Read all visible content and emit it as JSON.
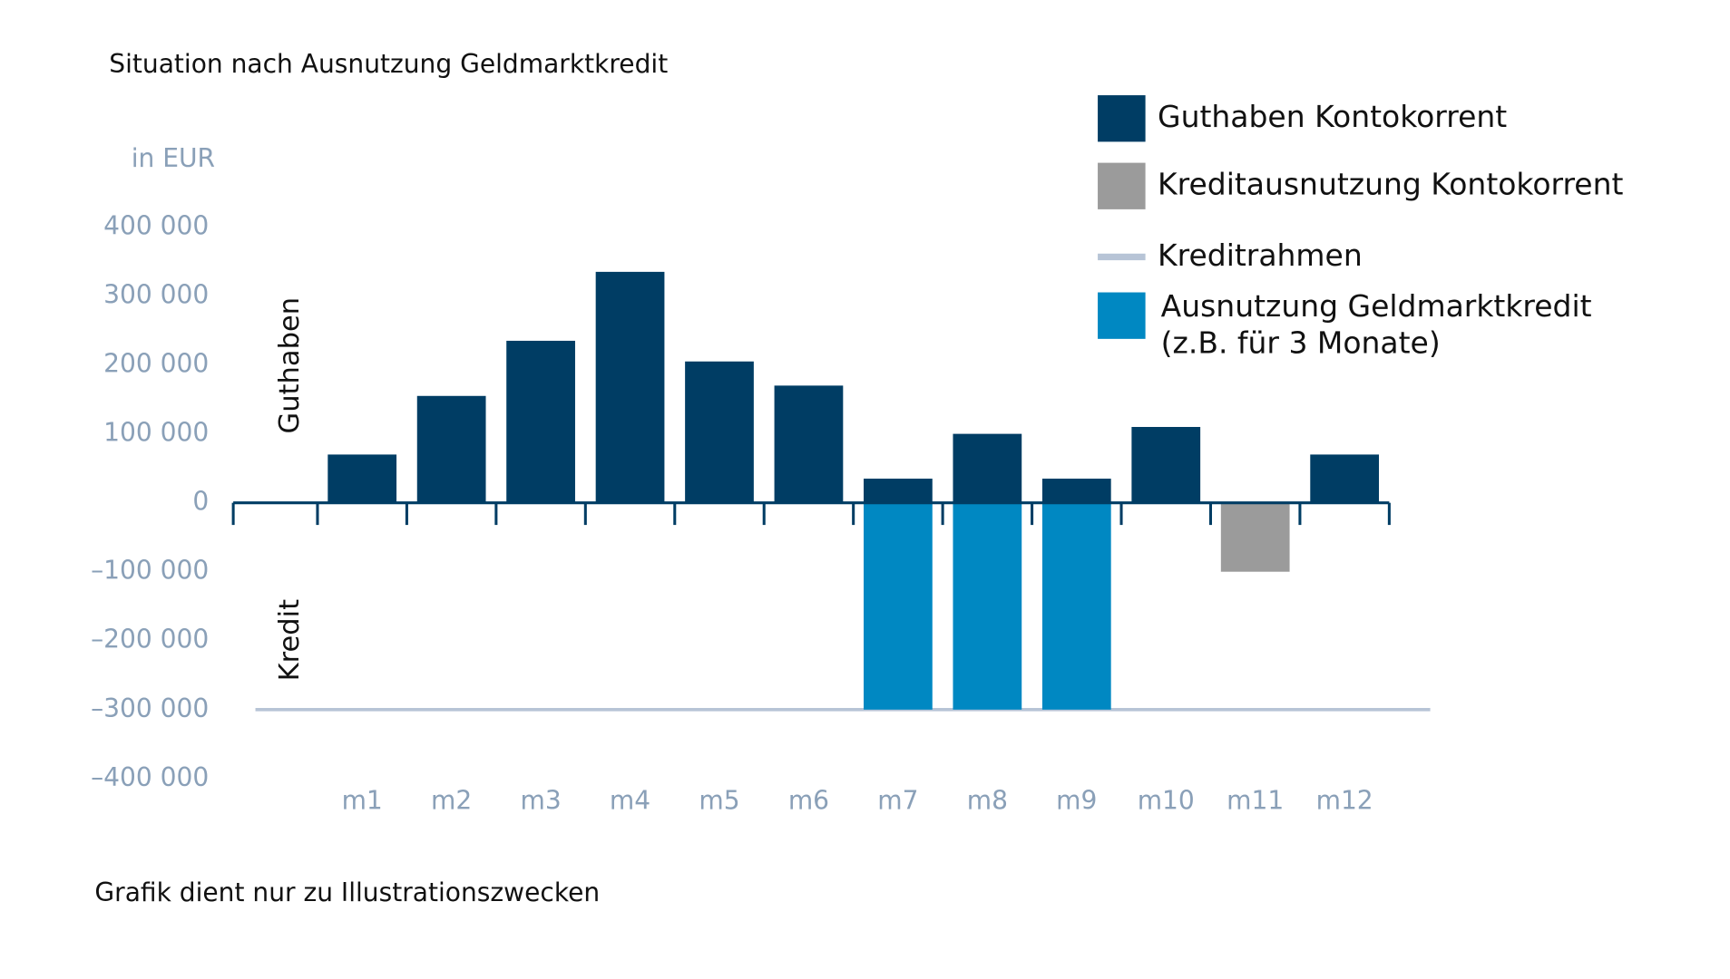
{
  "chart_data": {
    "type": "bar",
    "title": "Situation nach Ausnutzung Geldmarktkredit",
    "y_axis_label": "in EUR",
    "positive_label": "Guthaben",
    "negative_label": "Kredit",
    "footnote": "Grafik dient nur zu Illustrationszwecken",
    "categories": [
      "m1",
      "m2",
      "m3",
      "m4",
      "m5",
      "m6",
      "m7",
      "m8",
      "m9",
      "m10",
      "m11",
      "m12"
    ],
    "series": [
      {
        "name": "Guthaben Kontokorrent",
        "color": "#003d64",
        "values": [
          70000,
          155000,
          235000,
          335000,
          205000,
          170000,
          35000,
          100000,
          35000,
          110000,
          null,
          70000
        ]
      },
      {
        "name": "Kreditausnutzung Kontokorrent",
        "color": "#9b9b9b",
        "values": [
          null,
          null,
          null,
          null,
          null,
          null,
          null,
          null,
          null,
          null,
          -100000,
          null
        ]
      },
      {
        "name": "Kreditrahmen",
        "type": "hline",
        "color": "#b7c4d6",
        "value": -300000
      },
      {
        "name": "Ausnutzung Geldmarktkredit",
        "name_detail": "(z.B. für 3 Monate)",
        "color": "#0088c2",
        "values": [
          null,
          null,
          null,
          null,
          null,
          null,
          -300000,
          -300000,
          -300000,
          null,
          null,
          null
        ]
      }
    ],
    "ylim": [
      -400000,
      400000
    ],
    "yticks": [
      {
        "value": 400000,
        "label": "400 000"
      },
      {
        "value": 300000,
        "label": "300 000"
      },
      {
        "value": 200000,
        "label": "200 000"
      },
      {
        "value": 100000,
        "label": "100 000"
      },
      0,
      {
        "value": -100000,
        "label": "–100 000"
      },
      {
        "value": -200000,
        "label": "–200 000"
      },
      {
        "value": -300000,
        "label": "–300 000"
      },
      {
        "value": -400000,
        "label": "–400 000"
      }
    ]
  }
}
